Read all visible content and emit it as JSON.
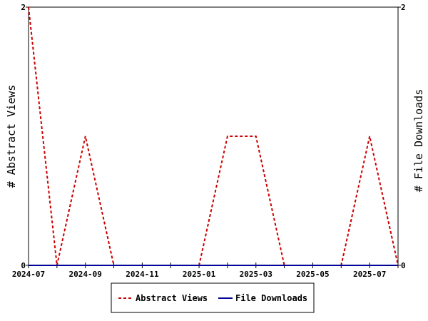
{
  "chart_data": {
    "type": "line",
    "x": [
      "2024-07",
      "2024-08",
      "2024-09",
      "2024-10",
      "2024-11",
      "2024-12",
      "2025-01",
      "2025-02",
      "2025-03",
      "2025-04",
      "2025-05",
      "2025-06",
      "2025-07",
      "2025-08"
    ],
    "x_tick_labels": [
      "2024-07",
      "2024-09",
      "2024-11",
      "2025-01",
      "2025-03",
      "2025-05",
      "2025-07"
    ],
    "series": [
      {
        "name": "Abstract Views",
        "axis": "left",
        "color": "#cc0000",
        "style": "dashed",
        "values": [
          2,
          0,
          1,
          0,
          0,
          0,
          0,
          1,
          1,
          0,
          0,
          0,
          1,
          0
        ]
      },
      {
        "name": "File Downloads",
        "axis": "right",
        "color": "#000099",
        "style": "solid",
        "values": [
          0,
          0,
          0,
          0,
          0,
          0,
          0,
          0,
          0,
          0,
          0,
          0,
          0,
          0
        ]
      }
    ],
    "ylabel_left": "# Abstract Views",
    "ylabel_right": "# File Downloads",
    "ylim_left": [
      0,
      2
    ],
    "ylim_right": [
      0,
      2
    ],
    "y_ticks_left": [
      "0",
      "2"
    ],
    "y_ticks_right": [
      "0",
      "2"
    ],
    "grid": false,
    "legend_placement": "bottom-center"
  }
}
